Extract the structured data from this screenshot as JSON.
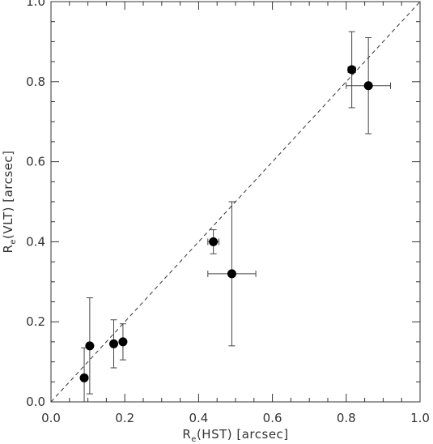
{
  "chart_data": {
    "type": "scatter",
    "title": "",
    "xlabel": {
      "main": "R",
      "sub": "e",
      "rest": "(HST)  [arcsec]"
    },
    "ylabel": {
      "main": "R",
      "sub": "e",
      "rest": "(VLT)  [arcsec]"
    },
    "xlim": [
      0.0,
      1.0
    ],
    "ylim": [
      0.0,
      1.0
    ],
    "x_ticks": [
      "0.0",
      "0.2",
      "0.4",
      "0.6",
      "0.8",
      "1.0"
    ],
    "y_ticks": [
      "0.0",
      "0.2",
      "0.4",
      "0.6",
      "0.8",
      "1.0"
    ],
    "reference_line": {
      "style": "dashed",
      "from": [
        0.0,
        0.0
      ],
      "to": [
        1.0,
        1.0
      ]
    },
    "points": [
      {
        "x": 0.09,
        "y": 0.06,
        "xerr": 0.0,
        "yerr_low": 0.06,
        "yerr_high": 0.075
      },
      {
        "x": 0.105,
        "y": 0.14,
        "xerr": 0.0,
        "yerr_low": 0.12,
        "yerr_high": 0.12
      },
      {
        "x": 0.17,
        "y": 0.145,
        "xerr": 0.0,
        "yerr_low": 0.06,
        "yerr_high": 0.06
      },
      {
        "x": 0.195,
        "y": 0.15,
        "xerr": 0.0,
        "yerr_low": 0.045,
        "yerr_high": 0.045
      },
      {
        "x": 0.44,
        "y": 0.4,
        "xerr": 0.015,
        "yerr_low": 0.03,
        "yerr_high": 0.03
      },
      {
        "x": 0.49,
        "y": 0.32,
        "xerr": 0.065,
        "yerr_low": 0.18,
        "yerr_high": 0.18
      },
      {
        "x": 0.815,
        "y": 0.83,
        "xerr": 0.01,
        "yerr_low": 0.095,
        "yerr_high": 0.095
      },
      {
        "x": 0.86,
        "y": 0.79,
        "xerr": 0.06,
        "yerr_low": 0.12,
        "yerr_high": 0.12
      }
    ],
    "grid": false,
    "marker": "filled-circle",
    "colors": {
      "marker": "#000000",
      "axis": "#333333",
      "errorbar": "#444444"
    }
  }
}
